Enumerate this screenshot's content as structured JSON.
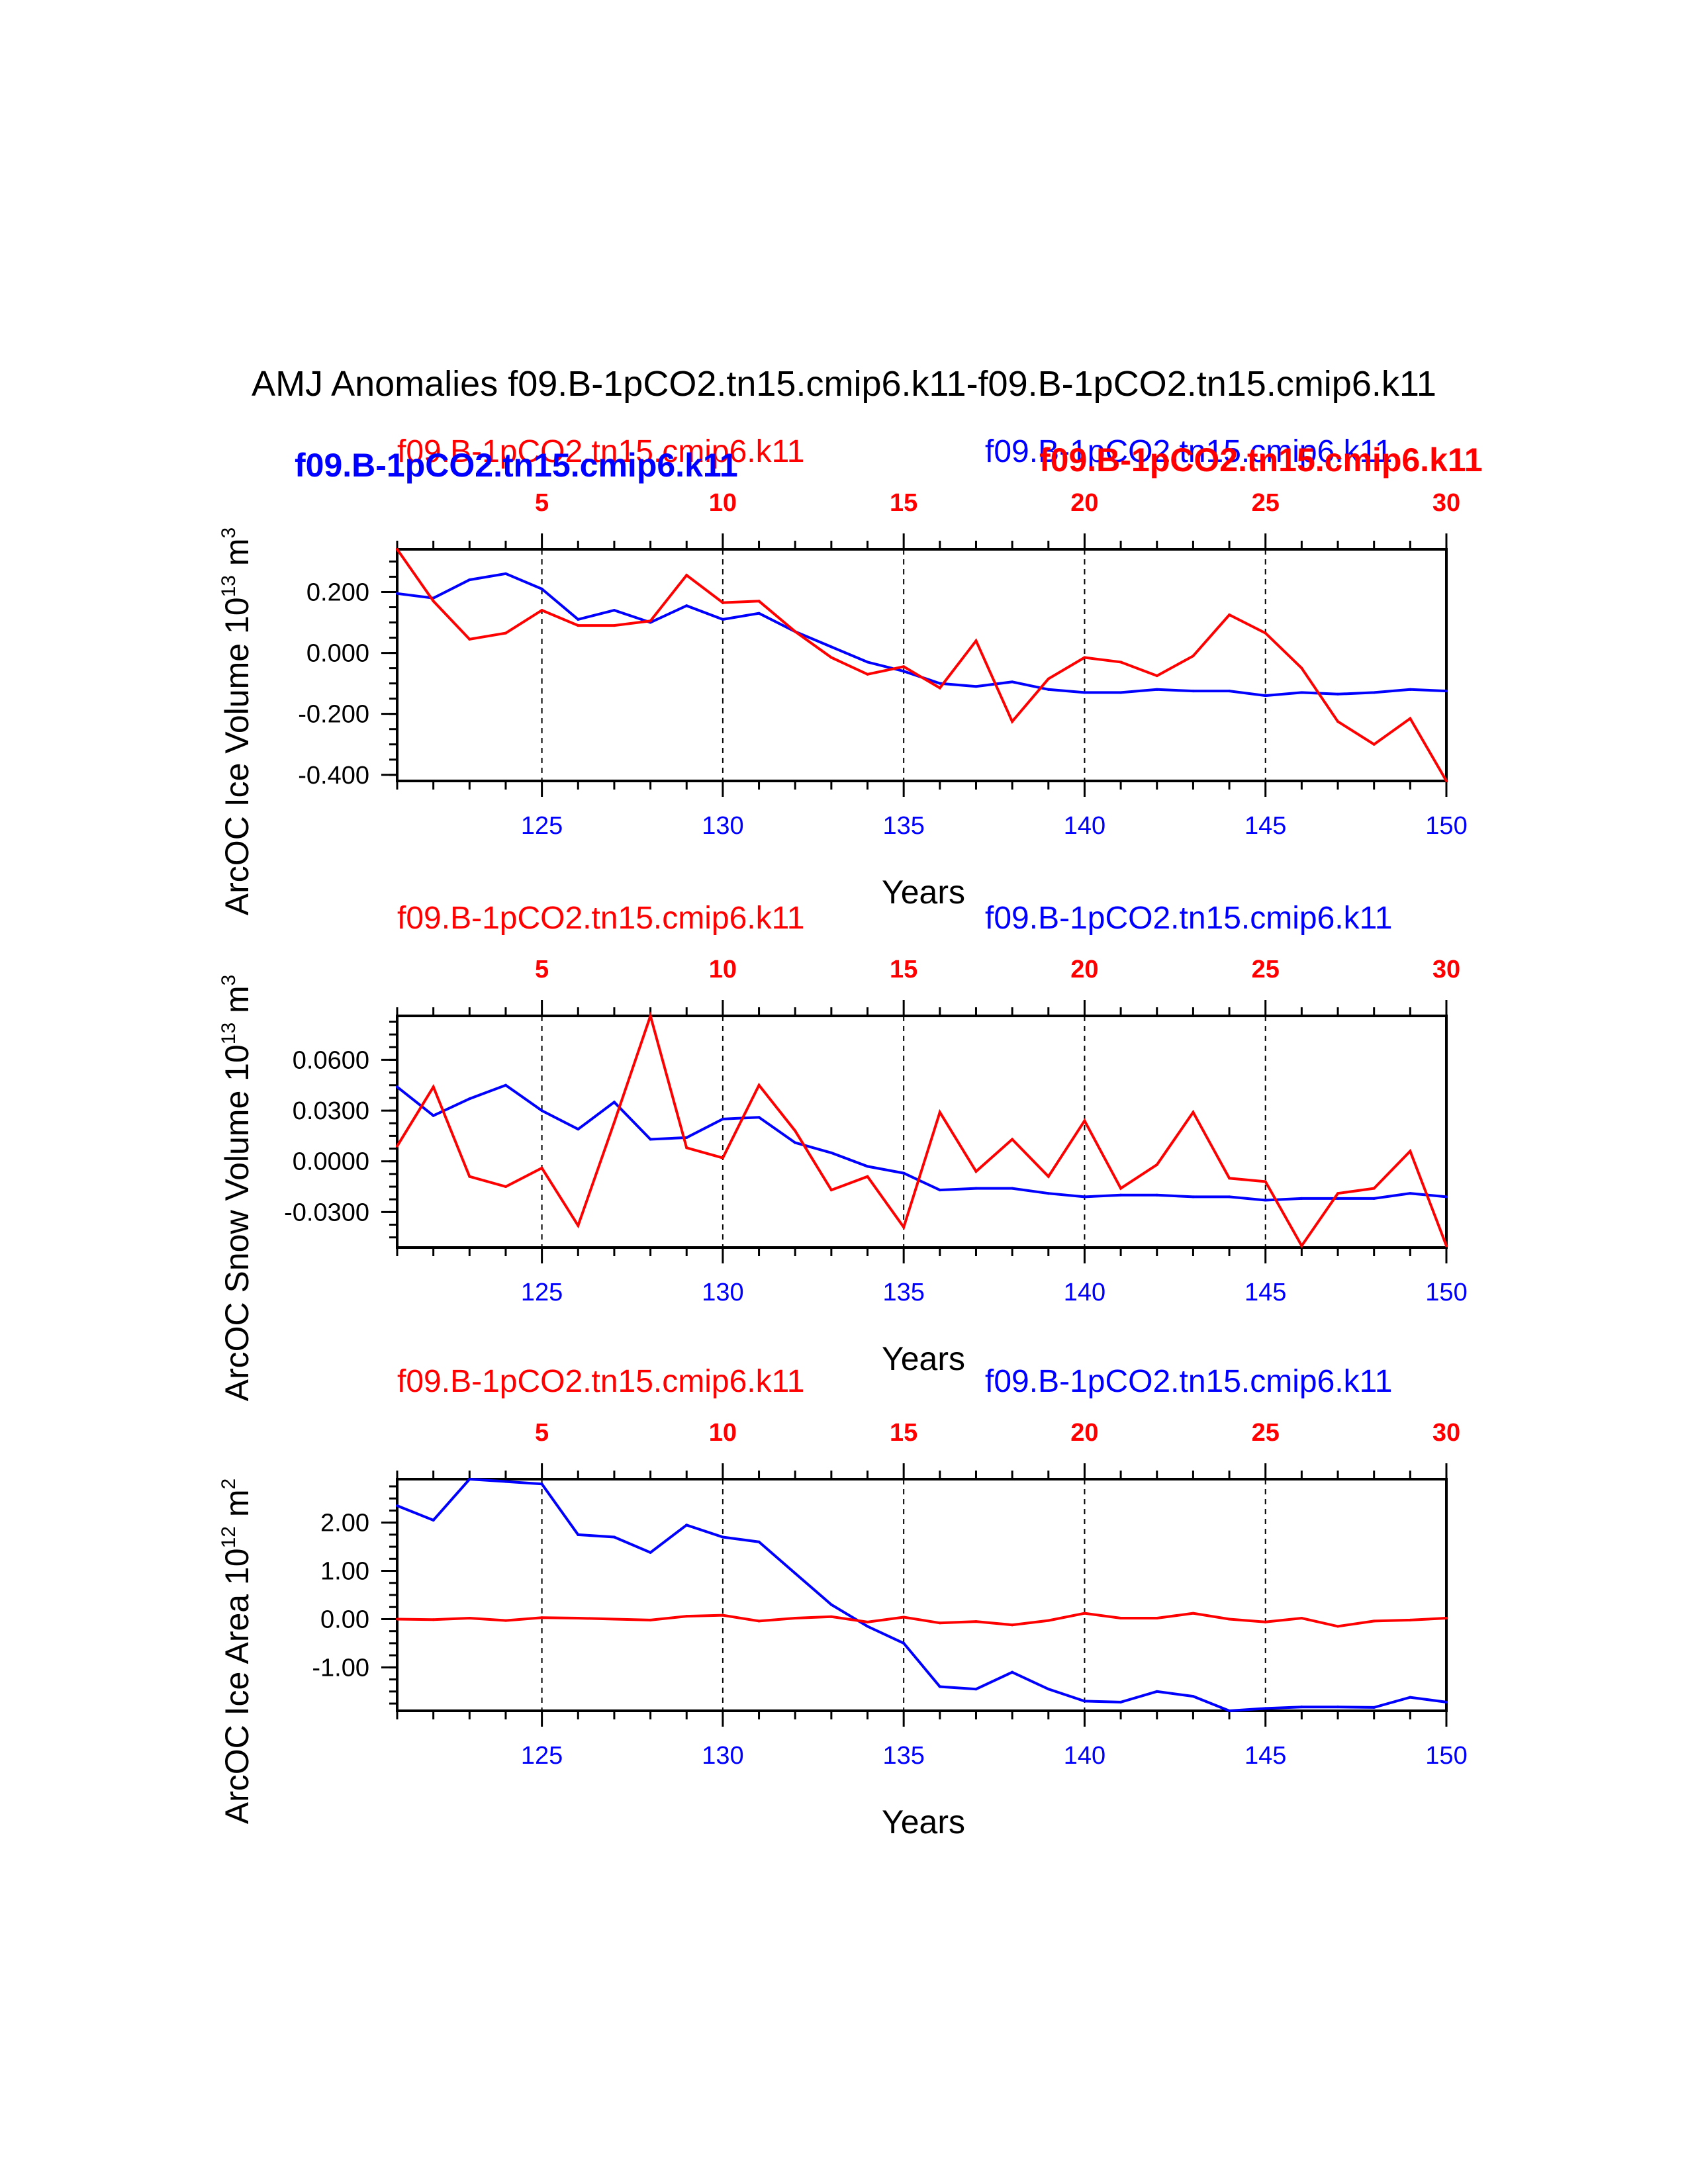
{
  "figure": {
    "title": "AMJ Anomalies f09.B-1pCO2.tn15.cmip6.k11-f09.B-1pCO2.tn15.cmip6.k11",
    "bold_legend_blue": "f09.B-1pCO2.tn15.cmip6.k11",
    "bold_legend_red": "f09.B-1pCO2.tn15.cmip6.k11",
    "colors": {
      "red": "#ff0000",
      "blue": "#0000ff",
      "axis": "#000000"
    }
  },
  "chart_data": [
    {
      "type": "line",
      "ylabel": "ArcOC Ice Volume 10^13 m^3",
      "ylabel_parts": {
        "main": "ArcOC Ice Volume 10",
        "exp1": "13",
        "unit": " m",
        "exp2": "3"
      },
      "xlabel": "Years",
      "top_label_red": "f09.B-1pCO2.tn15.cmip6.k11",
      "top_label_blue": "f09.B-1pCO2.tn15.cmip6.k11",
      "xlim": [
        121,
        150
      ],
      "bottom_ticks": [
        "125",
        "130",
        "135",
        "140",
        "145",
        "150"
      ],
      "top_ticks": [
        "5",
        "10",
        "15",
        "20",
        "25",
        "30"
      ],
      "ylim": [
        -0.42,
        0.34
      ],
      "yticks": [
        0.2,
        0.0,
        -0.2,
        -0.4
      ],
      "ytick_labels": [
        "0.200",
        "0.000",
        "-0.200",
        "-0.400"
      ],
      "x": [
        121,
        122,
        123,
        124,
        125,
        126,
        127,
        128,
        129,
        130,
        131,
        132,
        133,
        134,
        135,
        136,
        137,
        138,
        139,
        140,
        141,
        142,
        143,
        144,
        145,
        146,
        147,
        148,
        149,
        150
      ],
      "series": [
        {
          "name": "f09.B-1pCO2.tn15.cmip6.k11 (blue)",
          "color": "#0000ff",
          "values": [
            0.195,
            0.18,
            0.24,
            0.26,
            0.21,
            0.11,
            0.14,
            0.1,
            0.155,
            0.11,
            0.13,
            0.07,
            0.02,
            -0.03,
            -0.06,
            -0.1,
            -0.11,
            -0.095,
            -0.12,
            -0.13,
            -0.13,
            -0.12,
            -0.125,
            -0.125,
            -0.14,
            -0.13,
            -0.135,
            -0.13,
            -0.12,
            -0.125
          ]
        },
        {
          "name": "f09.B-1pCO2.tn15.cmip6.k11 (red)",
          "color": "#ff0000",
          "values": [
            0.34,
            0.17,
            0.045,
            0.065,
            0.14,
            0.09,
            0.09,
            0.105,
            0.255,
            0.165,
            0.17,
            0.07,
            -0.015,
            -0.07,
            -0.045,
            -0.115,
            0.04,
            -0.225,
            -0.085,
            -0.015,
            -0.03,
            -0.075,
            -0.01,
            0.125,
            0.065,
            -0.05,
            -0.225,
            -0.3,
            -0.215,
            -0.42
          ]
        }
      ]
    },
    {
      "type": "line",
      "ylabel": "ArcOC Snow Volume 10^13 m^3",
      "ylabel_parts": {
        "main": "ArcOC Snow Volume 10",
        "exp1": "13",
        "unit": " m",
        "exp2": "3"
      },
      "xlabel": "Years",
      "top_label_red": "f09.B-1pCO2.tn15.cmip6.k11",
      "top_label_blue": "f09.B-1pCO2.tn15.cmip6.k11",
      "xlim": [
        121,
        150
      ],
      "bottom_ticks": [
        "125",
        "130",
        "135",
        "140",
        "145",
        "150"
      ],
      "top_ticks": [
        "5",
        "10",
        "15",
        "20",
        "25",
        "30"
      ],
      "ylim": [
        -0.051,
        0.086
      ],
      "yticks": [
        0.06,
        0.03,
        0.0,
        -0.03
      ],
      "ytick_labels": [
        "0.0600",
        "0.0300",
        "0.0000",
        "-0.0300"
      ],
      "x": [
        121,
        122,
        123,
        124,
        125,
        126,
        127,
        128,
        129,
        130,
        131,
        132,
        133,
        134,
        135,
        136,
        137,
        138,
        139,
        140,
        141,
        142,
        143,
        144,
        145,
        146,
        147,
        148,
        149,
        150
      ],
      "series": [
        {
          "name": "f09.B-1pCO2.tn15.cmip6.k11 (blue)",
          "color": "#0000ff",
          "values": [
            0.044,
            0.027,
            0.037,
            0.045,
            0.03,
            0.019,
            0.035,
            0.013,
            0.014,
            0.025,
            0.026,
            0.011,
            0.005,
            -0.003,
            -0.007,
            -0.017,
            -0.016,
            -0.016,
            -0.019,
            -0.021,
            -0.02,
            -0.02,
            -0.021,
            -0.021,
            -0.023,
            -0.022,
            -0.022,
            -0.022,
            -0.019,
            -0.021
          ]
        },
        {
          "name": "f09.B-1pCO2.tn15.cmip6.k11 (red)",
          "color": "#ff0000",
          "values": [
            0.009,
            0.044,
            -0.009,
            -0.015,
            -0.004,
            -0.038,
            0.023,
            0.086,
            0.008,
            0.002,
            0.045,
            0.018,
            -0.017,
            -0.009,
            -0.039,
            0.029,
            -0.006,
            0.013,
            -0.009,
            0.024,
            -0.016,
            -0.002,
            0.029,
            -0.01,
            -0.012,
            -0.05,
            -0.019,
            -0.016,
            0.006,
            -0.05
          ]
        }
      ]
    },
    {
      "type": "line",
      "ylabel": "ArcOC Ice Area 10^12 m^2",
      "ylabel_parts": {
        "main": "ArcOC Ice Area 10",
        "exp1": "12",
        "unit": " m",
        "exp2": "2"
      },
      "xlabel": "Years",
      "top_label_red": "f09.B-1pCO2.tn15.cmip6.k11",
      "top_label_blue": "f09.B-1pCO2.tn15.cmip6.k11",
      "xlim": [
        121,
        150
      ],
      "bottom_ticks": [
        "125",
        "130",
        "135",
        "140",
        "145",
        "150"
      ],
      "top_ticks": [
        "5",
        "10",
        "15",
        "20",
        "25",
        "30"
      ],
      "ylim": [
        -1.9,
        2.9
      ],
      "yticks": [
        2.0,
        1.0,
        0.0,
        -1.0
      ],
      "ytick_labels": [
        "2.00",
        "1.00",
        "0.00",
        "-1.00"
      ],
      "x": [
        121,
        122,
        123,
        124,
        125,
        126,
        127,
        128,
        129,
        130,
        131,
        132,
        133,
        134,
        135,
        136,
        137,
        138,
        139,
        140,
        141,
        142,
        143,
        144,
        145,
        146,
        147,
        148,
        149,
        150
      ],
      "series": [
        {
          "name": "f09.B-1pCO2.tn15.cmip6.k11 (blue)",
          "color": "#0000ff",
          "values": [
            2.35,
            2.05,
            2.9,
            2.85,
            2.8,
            1.75,
            1.7,
            1.38,
            1.95,
            1.7,
            1.6,
            0.95,
            0.3,
            -0.15,
            -0.5,
            -1.4,
            -1.45,
            -1.1,
            -1.45,
            -1.7,
            -1.72,
            -1.5,
            -1.6,
            -1.9,
            -1.85,
            -1.82,
            -1.82,
            -1.83,
            -1.62,
            -1.72
          ]
        },
        {
          "name": "f09.B-1pCO2.tn15.cmip6.k11 (red)",
          "color": "#ff0000",
          "values": [
            0.0,
            -0.01,
            0.02,
            -0.03,
            0.03,
            0.02,
            0.0,
            -0.02,
            0.06,
            0.08,
            -0.04,
            0.02,
            0.05,
            -0.06,
            0.04,
            -0.08,
            -0.05,
            -0.12,
            -0.03,
            0.12,
            0.02,
            0.02,
            0.12,
            0.0,
            -0.06,
            0.02,
            -0.15,
            -0.04,
            -0.02,
            0.02
          ]
        }
      ]
    }
  ]
}
